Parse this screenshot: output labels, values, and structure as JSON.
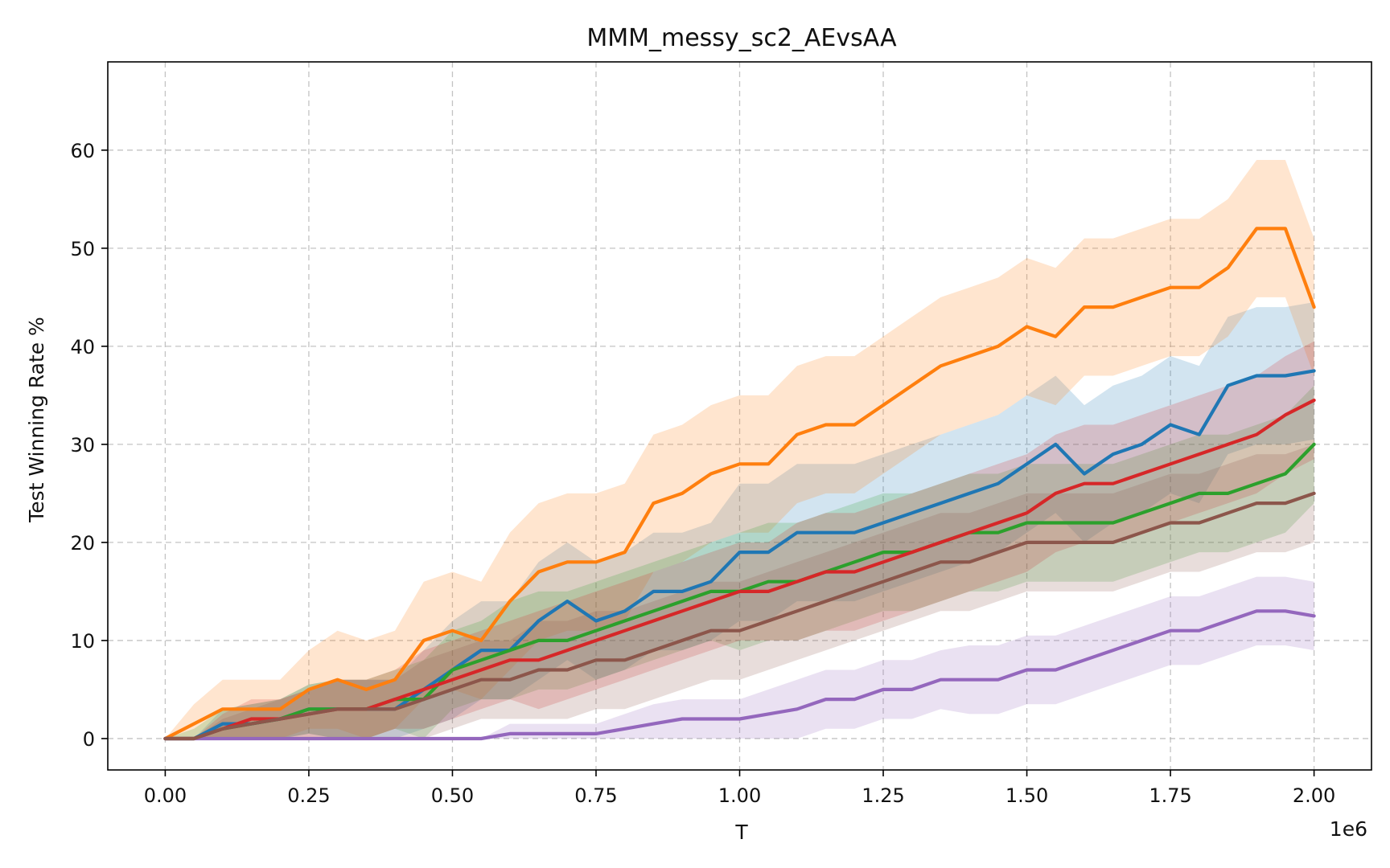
{
  "chart_data": {
    "type": "line",
    "title": "MMM_messy_sc2_AEvsAA",
    "xlabel": "T",
    "ylabel": "Test Winning Rate %",
    "x_offset_label": "1e6",
    "xlim": [
      -100000,
      2100000
    ],
    "ylim": [
      -3.2,
      69
    ],
    "grid": true,
    "x_ticks": [
      0,
      250000,
      500000,
      750000,
      1000000,
      1250000,
      1500000,
      1750000,
      2000000
    ],
    "x_tick_labels": [
      "0.00",
      "0.25",
      "0.50",
      "0.75",
      "1.00",
      "1.25",
      "1.50",
      "1.75",
      "2.00"
    ],
    "y_ticks": [
      0,
      10,
      20,
      30,
      40,
      50,
      60
    ],
    "y_tick_labels": [
      "0",
      "10",
      "20",
      "30",
      "40",
      "50",
      "60"
    ],
    "series": [
      {
        "color": "#1f77b4",
        "x": [
          0,
          50000,
          100000,
          150000,
          200000,
          250000,
          300000,
          350000,
          400000,
          450000,
          500000,
          550000,
          600000,
          650000,
          700000,
          750000,
          800000,
          850000,
          900000,
          950000,
          1000000,
          1050000,
          1100000,
          1150000,
          1200000,
          1250000,
          1300000,
          1350000,
          1400000,
          1450000,
          1500000,
          1550000,
          1600000,
          1650000,
          1700000,
          1750000,
          1800000,
          1850000,
          1900000,
          1950000,
          2000000
        ],
        "y": [
          0,
          0,
          1.5,
          1.5,
          2,
          3,
          3,
          3,
          3,
          5,
          7,
          9,
          9,
          12,
          14,
          12,
          13,
          15,
          15,
          16,
          19,
          19,
          21,
          21,
          21,
          22,
          23,
          24,
          25,
          26,
          28,
          30,
          27,
          29,
          30,
          32,
          31,
          36,
          37,
          37,
          37.5
        ],
        "band": [
          0,
          0,
          1.5,
          2,
          2,
          2.5,
          3,
          3,
          3,
          4,
          5,
          5,
          5,
          6,
          6,
          6,
          6,
          6,
          6,
          6,
          7,
          7,
          7,
          7,
          7,
          7,
          7,
          7,
          7,
          7,
          7,
          7,
          7,
          7,
          7,
          7,
          7,
          7,
          7,
          7,
          7
        ]
      },
      {
        "color": "#ff7f0e",
        "x": [
          0,
          50000,
          100000,
          150000,
          200000,
          250000,
          300000,
          350000,
          400000,
          450000,
          500000,
          550000,
          600000,
          650000,
          700000,
          750000,
          800000,
          850000,
          900000,
          950000,
          1000000,
          1050000,
          1100000,
          1150000,
          1200000,
          1250000,
          1300000,
          1350000,
          1400000,
          1450000,
          1500000,
          1550000,
          1600000,
          1650000,
          1700000,
          1750000,
          1800000,
          1850000,
          1900000,
          1950000,
          2000000
        ],
        "y": [
          0,
          1.5,
          3,
          3,
          3,
          5,
          6,
          5,
          6,
          10,
          11,
          10,
          14,
          17,
          18,
          18,
          19,
          24,
          25,
          27,
          28,
          28,
          31,
          32,
          32,
          34,
          36,
          38,
          39,
          40,
          42,
          41,
          44,
          44,
          45,
          46,
          46,
          48,
          52,
          52,
          44
        ],
        "band": [
          0,
          2,
          3,
          3,
          3,
          4,
          5,
          5,
          5,
          6,
          6,
          6,
          7,
          7,
          7,
          7,
          7,
          7,
          7,
          7,
          7,
          7,
          7,
          7,
          7,
          7,
          7,
          7,
          7,
          7,
          7,
          7,
          7,
          7,
          7,
          7,
          7,
          7,
          7,
          7,
          7
        ]
      },
      {
        "color": "#2ca02c",
        "x": [
          0,
          50000,
          100000,
          150000,
          200000,
          250000,
          300000,
          350000,
          400000,
          450000,
          500000,
          550000,
          600000,
          650000,
          700000,
          750000,
          800000,
          850000,
          900000,
          950000,
          1000000,
          1050000,
          1100000,
          1150000,
          1200000,
          1250000,
          1300000,
          1350000,
          1400000,
          1450000,
          1500000,
          1550000,
          1600000,
          1650000,
          1700000,
          1750000,
          1800000,
          1850000,
          1900000,
          1950000,
          2000000
        ],
        "y": [
          0,
          0,
          1,
          1.5,
          2,
          3,
          3,
          3,
          4,
          4,
          7,
          8,
          9,
          10,
          10,
          11,
          12,
          13,
          14,
          15,
          15,
          16,
          16,
          17,
          18,
          19,
          19,
          20,
          21,
          21,
          22,
          22,
          22,
          22,
          23,
          24,
          25,
          25,
          26,
          27,
          30
        ],
        "band": [
          0,
          1,
          2,
          2,
          2,
          2.5,
          3,
          3,
          3,
          4,
          4,
          4,
          5,
          5,
          5,
          5,
          5,
          5,
          5,
          5,
          6,
          6,
          6,
          6,
          6,
          6,
          6,
          6,
          6,
          6,
          6,
          6,
          6,
          6,
          6,
          6,
          6,
          6,
          6,
          6,
          6
        ]
      },
      {
        "color": "#d62728",
        "x": [
          0,
          50000,
          100000,
          150000,
          200000,
          250000,
          300000,
          350000,
          400000,
          450000,
          500000,
          550000,
          600000,
          650000,
          700000,
          750000,
          800000,
          850000,
          900000,
          950000,
          1000000,
          1050000,
          1100000,
          1150000,
          1200000,
          1250000,
          1300000,
          1350000,
          1400000,
          1450000,
          1500000,
          1550000,
          1600000,
          1650000,
          1700000,
          1750000,
          1800000,
          1850000,
          1900000,
          1950000,
          2000000
        ],
        "y": [
          0,
          0,
          1,
          2,
          2,
          2.5,
          3,
          3,
          4,
          5,
          6,
          7,
          8,
          8,
          9,
          10,
          11,
          12,
          13,
          14,
          15,
          15,
          16,
          17,
          17,
          18,
          19,
          20,
          21,
          22,
          23,
          25,
          26,
          26,
          27,
          28,
          29,
          30,
          31,
          33,
          34.5
        ],
        "band": [
          0,
          0,
          1.5,
          2,
          2,
          2.5,
          3,
          3,
          3,
          4,
          4,
          4,
          4,
          5,
          5,
          5,
          5,
          5,
          5,
          5,
          5,
          5,
          6,
          6,
          6,
          6,
          6,
          6,
          6,
          6,
          6,
          6,
          6,
          6,
          6,
          6,
          6,
          6,
          6,
          6,
          6
        ]
      },
      {
        "color": "#9467bd",
        "x": [
          0,
          50000,
          100000,
          150000,
          200000,
          250000,
          300000,
          350000,
          400000,
          450000,
          500000,
          550000,
          600000,
          650000,
          700000,
          750000,
          800000,
          850000,
          900000,
          950000,
          1000000,
          1050000,
          1100000,
          1150000,
          1200000,
          1250000,
          1300000,
          1350000,
          1400000,
          1450000,
          1500000,
          1550000,
          1600000,
          1650000,
          1700000,
          1750000,
          1800000,
          1850000,
          1900000,
          1950000,
          2000000
        ],
        "y": [
          0,
          0,
          0,
          0,
          0,
          0,
          0,
          0,
          0,
          0,
          0,
          0,
          0.5,
          0.5,
          0.5,
          0.5,
          1,
          1.5,
          2,
          2,
          2,
          2.5,
          3,
          4,
          4,
          5,
          5,
          6,
          6,
          6,
          7,
          7,
          8,
          9,
          10,
          11,
          11,
          12,
          13,
          13,
          12.5
        ],
        "band": [
          0,
          0,
          0,
          0,
          0,
          0,
          0,
          0,
          0,
          0,
          0,
          0,
          1,
          1,
          1,
          1,
          1.5,
          2,
          2,
          2,
          2,
          2.5,
          3,
          3,
          3,
          3,
          3,
          3,
          3.5,
          3.5,
          3.5,
          3.5,
          3.5,
          3.5,
          3.5,
          3.5,
          3.5,
          3.5,
          3.5,
          3.5,
          3.5
        ]
      },
      {
        "color": "#8c564b",
        "x": [
          0,
          50000,
          100000,
          150000,
          200000,
          250000,
          300000,
          350000,
          400000,
          450000,
          500000,
          550000,
          600000,
          650000,
          700000,
          750000,
          800000,
          850000,
          900000,
          950000,
          1000000,
          1050000,
          1100000,
          1150000,
          1200000,
          1250000,
          1300000,
          1350000,
          1400000,
          1450000,
          1500000,
          1550000,
          1600000,
          1650000,
          1700000,
          1750000,
          1800000,
          1850000,
          1900000,
          1950000,
          2000000
        ],
        "y": [
          0,
          0,
          1,
          1.5,
          2,
          2.5,
          3,
          3,
          3,
          4,
          5,
          6,
          6,
          7,
          7,
          8,
          8,
          9,
          10,
          11,
          11,
          12,
          13,
          14,
          15,
          16,
          17,
          18,
          18,
          19,
          20,
          20,
          20,
          20,
          21,
          22,
          22,
          23,
          24,
          24,
          25
        ],
        "band": [
          0,
          0,
          1,
          1.5,
          2,
          2.5,
          3,
          3,
          3,
          4,
          4,
          4,
          4,
          5,
          5,
          5,
          5,
          5,
          5,
          5,
          5,
          5,
          5,
          5,
          5,
          5,
          5,
          5,
          5,
          5,
          5,
          5,
          5,
          5,
          5,
          5,
          5,
          5,
          5,
          5,
          5
        ]
      }
    ]
  }
}
